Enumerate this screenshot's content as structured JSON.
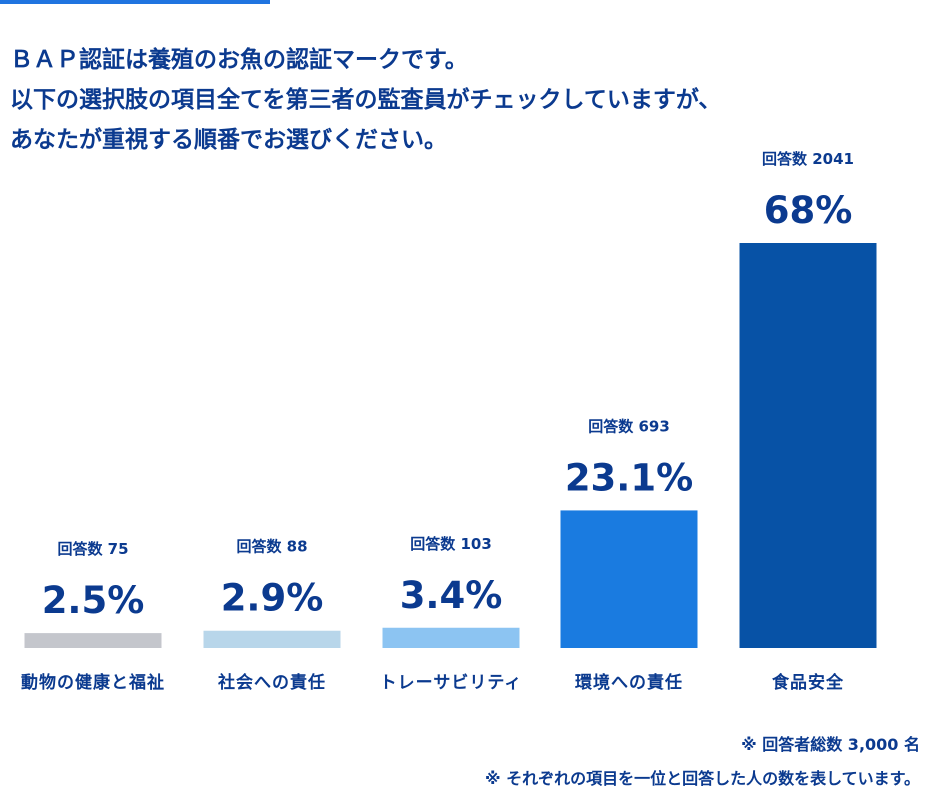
{
  "title_lines": [
    "ＢＡＰ認証は養殖のお魚の認証マークです。",
    "以下の選択肢の項目全てを第三者の監査員がチェックしていますが、",
    "あなたが重視する順番でお選びください。"
  ],
  "notes": [
    "※ 回答者総数 3,000 名",
    "※ それぞれの項目を一位と回答した人の数を表しています。"
  ],
  "colors": {
    "text": "#0b3a8f",
    "accent": "#1f74e0"
  },
  "chart_data": {
    "type": "bar",
    "title": "",
    "xlabel": "",
    "ylabel": "",
    "ylim": [
      0,
      68
    ],
    "categories": [
      "動物の健康と福祉",
      "社会への責任",
      "トレーサビリティ",
      "環境への責任",
      "食品安全"
    ],
    "values": [
      2.5,
      2.9,
      3.4,
      23.1,
      68
    ],
    "value_labels": [
      "2.5%",
      "2.9%",
      "3.4%",
      "23.1%",
      "68%"
    ],
    "count_labels": [
      "回答数 75",
      "回答数 88",
      "回答数 103",
      "回答数 693",
      "回答数 2041"
    ],
    "bar_colors": [
      "#c4c6cc",
      "#b8d6ea",
      "#8cc4f2",
      "#1a7be0",
      "#0752a6"
    ]
  }
}
